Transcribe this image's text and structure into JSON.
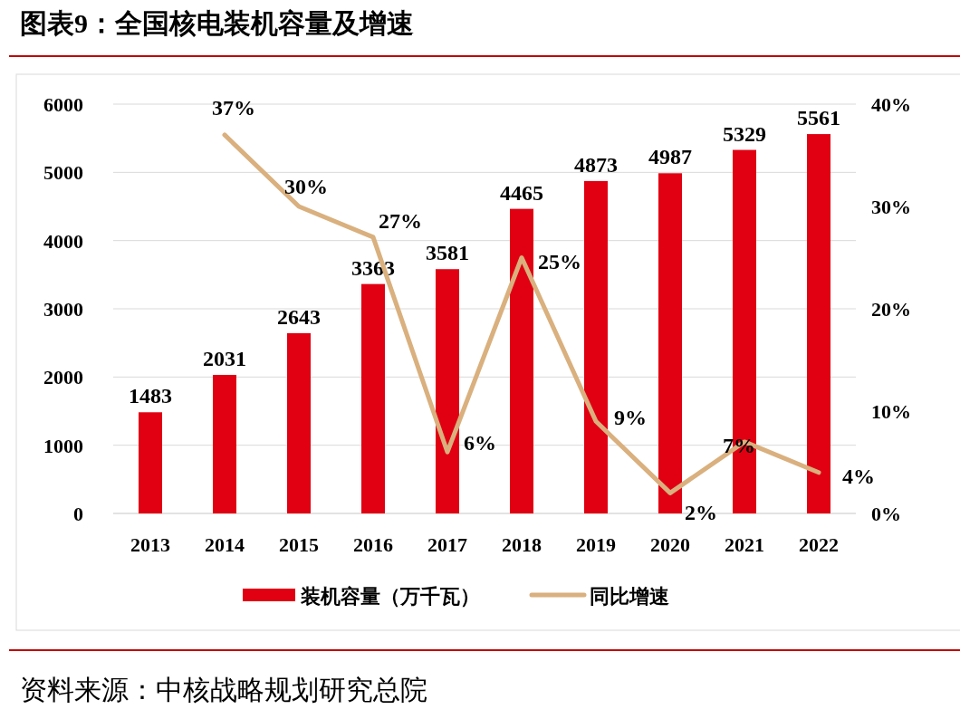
{
  "chart_data": {
    "type": "bar",
    "title": "图表9：全国核电装机容量及增速",
    "categories": [
      "2013",
      "2014",
      "2015",
      "2016",
      "2017",
      "2018",
      "2019",
      "2020",
      "2021",
      "2022"
    ],
    "series": [
      {
        "name": "装机容量（万千瓦）",
        "color": "#e00012",
        "values": [
          1483,
          2031,
          2643,
          3363,
          3581,
          4465,
          4873,
          4987,
          5329,
          5561
        ]
      },
      {
        "name": "同比增速",
        "type": "line",
        "axis": "y2",
        "color": "#d9b07e",
        "values": [
          null,
          37,
          30,
          27,
          6,
          25,
          9,
          2,
          7,
          4
        ],
        "value_labels": [
          null,
          "37%",
          "30%",
          "27%",
          "6%",
          "25%",
          "9%",
          "2%",
          "7%",
          "4%"
        ]
      }
    ],
    "ylim": [
      0,
      6000
    ],
    "yticks": [
      0,
      1000,
      2000,
      3000,
      4000,
      5000,
      6000
    ],
    "y2lim": [
      0,
      40
    ],
    "y2ticks": [
      {
        "value": 0,
        "label": "0%"
      },
      {
        "value": 10,
        "label": "10%"
      },
      {
        "value": 20,
        "label": "20%"
      },
      {
        "value": 30,
        "label": "30%"
      },
      {
        "value": 40,
        "label": "40%"
      }
    ],
    "grid": "y",
    "legend": "bottom",
    "data_labels": true,
    "annotations": [
      "资料来源：中核战略规划研究总院"
    ]
  }
}
